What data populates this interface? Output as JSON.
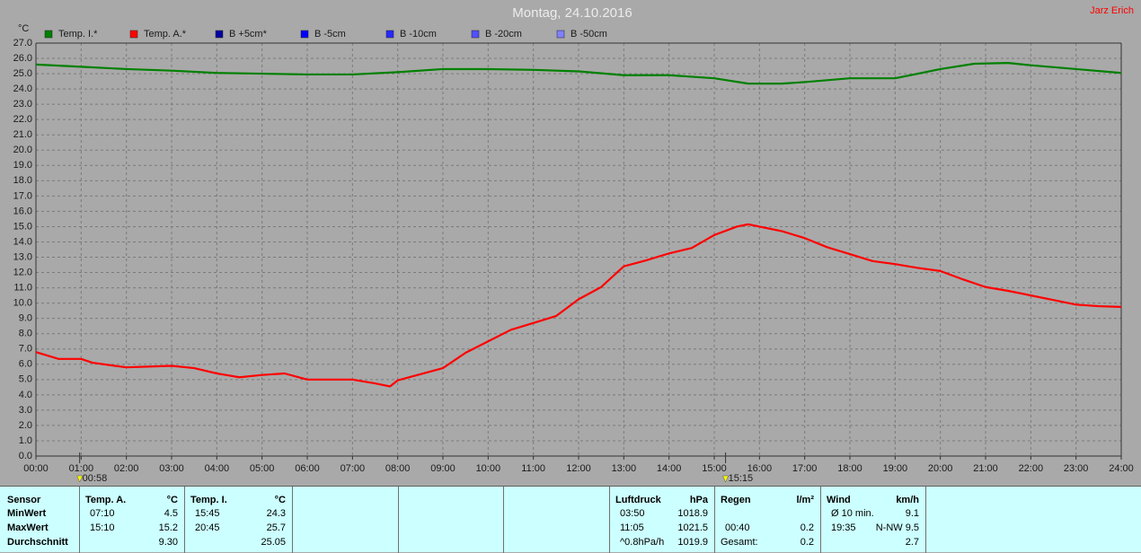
{
  "chart_data": {
    "type": "line",
    "title": "Montag, 24.10.2016",
    "author": "Jarz Erich",
    "y_label": "°C",
    "xlim": [
      0,
      24
    ],
    "ylim": [
      0,
      27
    ],
    "grid": true,
    "xticks": [
      {
        "value": 0,
        "label": "00:00"
      },
      {
        "value": 1,
        "label": "01:00"
      },
      {
        "value": 2,
        "label": "02:00"
      },
      {
        "value": 3,
        "label": "03:00"
      },
      {
        "value": 4,
        "label": "04:00"
      },
      {
        "value": 5,
        "label": "05:00"
      },
      {
        "value": 6,
        "label": "06:00"
      },
      {
        "value": 7,
        "label": "07:00"
      },
      {
        "value": 8,
        "label": "08:00"
      },
      {
        "value": 9,
        "label": "09:00"
      },
      {
        "value": 10,
        "label": "10:00"
      },
      {
        "value": 11,
        "label": "11:00"
      },
      {
        "value": 12,
        "label": "12:00"
      },
      {
        "value": 13,
        "label": "13:00"
      },
      {
        "value": 14,
        "label": "14:00"
      },
      {
        "value": 15,
        "label": "15:00"
      },
      {
        "value": 16,
        "label": "16:00"
      },
      {
        "value": 17,
        "label": "17:00"
      },
      {
        "value": 18,
        "label": "18:00"
      },
      {
        "value": 19,
        "label": "19:00"
      },
      {
        "value": 20,
        "label": "20:00"
      },
      {
        "value": 21,
        "label": "21:00"
      },
      {
        "value": 22,
        "label": "22:00"
      },
      {
        "value": 23,
        "label": "23:00"
      },
      {
        "value": 24,
        "label": "24:00"
      }
    ],
    "yticks": [
      {
        "value": 0,
        "label": "0.0"
      },
      {
        "value": 1,
        "label": "1.0"
      },
      {
        "value": 2,
        "label": "2.0"
      },
      {
        "value": 3,
        "label": "3.0"
      },
      {
        "value": 4,
        "label": "4.0"
      },
      {
        "value": 5,
        "label": "5.0"
      },
      {
        "value": 6,
        "label": "6.0"
      },
      {
        "value": 7,
        "label": "7.0"
      },
      {
        "value": 8,
        "label": "8.0"
      },
      {
        "value": 9,
        "label": "9.0"
      },
      {
        "value": 10,
        "label": "10.0"
      },
      {
        "value": 11,
        "label": "11.0"
      },
      {
        "value": 12,
        "label": "12.0"
      },
      {
        "value": 13,
        "label": "13.0"
      },
      {
        "value": 14,
        "label": "14.0"
      },
      {
        "value": 15,
        "label": "15.0"
      },
      {
        "value": 16,
        "label": "16.0"
      },
      {
        "value": 17,
        "label": "17.0"
      },
      {
        "value": 18,
        "label": "18.0"
      },
      {
        "value": 19,
        "label": "19.0"
      },
      {
        "value": 20,
        "label": "20.0"
      },
      {
        "value": 21,
        "label": "21.0"
      },
      {
        "value": 22,
        "label": "22.0"
      },
      {
        "value": 23,
        "label": "23.0"
      },
      {
        "value": 24,
        "label": "24.0"
      },
      {
        "value": 25,
        "label": "25.0"
      },
      {
        "value": 26,
        "label": "26.0"
      },
      {
        "value": 27,
        "label": "27.0"
      }
    ],
    "series": [
      {
        "name": "Temp. I.*",
        "color": "#008000",
        "x": [
          0,
          1,
          2,
          3,
          4,
          5,
          6,
          7,
          8,
          9,
          10,
          11,
          12,
          13,
          14,
          15,
          15.75,
          16.5,
          17,
          18,
          19,
          20,
          20.75,
          21.5,
          22,
          23,
          24
        ],
        "values": [
          25.6,
          25.45,
          25.3,
          25.2,
          25.05,
          25.0,
          24.95,
          24.95,
          25.1,
          25.3,
          25.3,
          25.25,
          25.15,
          24.9,
          24.9,
          24.7,
          24.35,
          24.35,
          24.45,
          24.7,
          24.7,
          25.3,
          25.65,
          25.7,
          25.55,
          25.3,
          25.05
        ]
      },
      {
        "name": "Temp. A.*",
        "color": "#ff0000",
        "x": [
          0,
          0.5,
          1,
          1.25,
          2,
          3,
          3.5,
          4,
          4.5,
          5,
          5.5,
          6,
          7,
          7.5,
          7.83,
          8,
          9,
          9.5,
          10,
          10.5,
          11,
          11.5,
          12,
          12.5,
          13,
          13.5,
          14,
          14.5,
          15,
          15.5,
          15.75,
          16,
          16.5,
          17,
          17.5,
          18,
          18.5,
          19,
          19.5,
          20,
          20.5,
          21,
          21.5,
          22,
          22.5,
          23,
          23.5,
          24
        ],
        "values": [
          6.8,
          6.35,
          6.35,
          6.1,
          5.8,
          5.9,
          5.75,
          5.4,
          5.15,
          5.3,
          5.4,
          5.0,
          5.0,
          4.75,
          4.55,
          4.95,
          5.75,
          6.75,
          7.5,
          8.25,
          8.7,
          9.15,
          10.25,
          11.05,
          12.4,
          12.8,
          13.25,
          13.6,
          14.45,
          15.0,
          15.15,
          15.0,
          14.7,
          14.25,
          13.65,
          13.2,
          12.75,
          12.55,
          12.3,
          12.1,
          11.55,
          11.05,
          10.8,
          10.5,
          10.2,
          9.9,
          9.8,
          9.75
        ]
      }
    ],
    "extra_legend": [
      {
        "name": "B +5cm*",
        "color": "#0000a0"
      },
      {
        "name": "B -5cm",
        "color": "#0000ff"
      },
      {
        "name": "B -10cm",
        "color": "#2828ff"
      },
      {
        "name": "B -20cm",
        "color": "#5050ff"
      },
      {
        "name": "B -50cm",
        "color": "#8080ff"
      }
    ],
    "markers": [
      {
        "x": 0.967,
        "label": "00:58"
      },
      {
        "x": 15.25,
        "label": "15:15"
      }
    ]
  },
  "table": {
    "labels": [
      "Sensor",
      "MinWert",
      "MaxWert",
      "Durchschnitt"
    ],
    "groups": [
      {
        "title": "Temp. A.",
        "unit": "°C",
        "rows": [
          [
            "07:10",
            "4.5"
          ],
          [
            "15:10",
            "15.2"
          ],
          [
            null,
            "9.30"
          ]
        ]
      },
      {
        "title": "Temp. I.",
        "unit": "°C",
        "rows": [
          [
            "15:45",
            "24.3"
          ],
          [
            "20:45",
            "25.7"
          ],
          [
            null,
            "25.05"
          ]
        ]
      },
      {
        "title": "Luftdruck",
        "unit": "hPa",
        "rows": [
          [
            "03:50",
            "1018.9"
          ],
          [
            "11:05",
            "1021.5"
          ],
          [
            "^0.8hPa/h",
            "1019.9"
          ]
        ]
      },
      {
        "title": "Regen",
        "unit": "l/m²",
        "rows": [
          [
            null,
            null
          ],
          [
            "00:40",
            "0.2"
          ],
          [
            "Gesamt:",
            "0.2"
          ]
        ]
      },
      {
        "title": "Wind",
        "unit": "km/h",
        "rows": [
          [
            "Ø 10 min.",
            "9.1"
          ],
          [
            "19:35",
            "N-NW 9.5"
          ],
          [
            null,
            "2.7"
          ]
        ]
      }
    ]
  }
}
